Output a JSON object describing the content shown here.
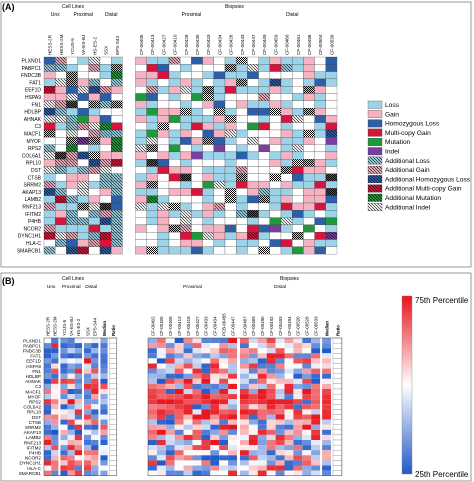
{
  "panel_a": {
    "label": "(A)",
    "group_cell_lines": "Cell Lines",
    "group_biopsies": "Biopsies",
    "subgroups_cells": [
      "Unx",
      "Proximal",
      "Distal"
    ],
    "subgroups_biopsies": [
      "Proximal",
      "Distal"
    ],
    "columns": [
      "HESS-2R",
      "HESS-2M",
      "YCUS-5",
      "VA-ES-BJ",
      "HS-ES-2",
      "SSX",
      "EPS-S44",
      "CF-00405",
      "CF-00413",
      "CF-00427",
      "CF-00410",
      "CF-00428",
      "CF-00430",
      "CF-00433",
      "CF-00434",
      "CF-00426",
      "CF-00443",
      "CF-00447",
      "CF-00449",
      "CF-00459",
      "CF-00460",
      "CF-00461",
      "CF-00488",
      "CF-00504",
      "CF-00539"
    ],
    "genes": [
      "PLXND1",
      "PABPC1",
      "FNDC3B",
      "FAT1",
      "EEF1D",
      "HSPA9",
      "FN1",
      "HDLBP",
      "AHNAK",
      "C3",
      "MACF1",
      "MYOF",
      "RPS2",
      "COL6A1",
      "RPL10",
      "DST",
      "CTSB",
      "SRRM2",
      "AKAP13",
      "LAMB2",
      "RNF213",
      "IFITM2",
      "P4HB",
      "NCOR2",
      "DYNC1H1",
      "HLA-C",
      "SMARCB1"
    ],
    "legend": [
      {
        "label": "Loss",
        "color": "#9cd3e8",
        "pattern": "solid"
      },
      {
        "label": "Gain",
        "color": "#f4b2c2",
        "pattern": "solid"
      },
      {
        "label": "Homozygous Loss",
        "color": "#2d5fa8",
        "pattern": "solid"
      },
      {
        "label": "Multi-copy Gain",
        "color": "#d8143c",
        "pattern": "solid"
      },
      {
        "label": "Mutation",
        "color": "#1e9a3c",
        "pattern": "solid"
      },
      {
        "label": "Indel",
        "color": "#7a3da0",
        "pattern": "solid"
      },
      {
        "label": "Additional Loss",
        "color": "#9cd3e8",
        "pattern": "hatch"
      },
      {
        "label": "Additional Gain",
        "color": "#f4b2c2",
        "pattern": "hatch"
      },
      {
        "label": "Additional Homozygous Loss",
        "color": "#2d5fa8",
        "pattern": "hatch"
      },
      {
        "label": "Additional Multi-copy Gain",
        "color": "#d8143c",
        "pattern": "hatch"
      },
      {
        "label": "Additional Mutation",
        "color": "#1e9a3c",
        "pattern": "hatch"
      },
      {
        "label": "Additional Indel",
        "color": "#ffffff",
        "pattern": "hatch"
      }
    ]
  },
  "panel_b": {
    "label": "(B)",
    "group_cell_lines": "Cell Lines",
    "group_biopsies": "Biopsies",
    "subgroups_cells": [
      "Unx",
      "Proximal",
      "Distal"
    ],
    "subgroups_biopsies": [
      "Proximal",
      "Distal"
    ],
    "columns": [
      "HESS-2R",
      "HESS-2M",
      "YCUS-5",
      "VA-ES-BJ",
      "HS-ES-2",
      "SSX",
      "EPS-S44",
      "CF-00402",
      "CF-00405",
      "CF-00408",
      "CF-00413",
      "CF-00418",
      "CF-00427",
      "CF-00433",
      "CF-00434",
      "PCB-00455",
      "CF-00447",
      "CF-00487",
      "CF-00489",
      "CF-00490",
      "CF-00492",
      "CF-00493",
      "CF-00494",
      "CF-00520",
      "CF-00528",
      "CF-00539"
    ],
    "median_label": "Median",
    "ratio_label": "Ratio",
    "genes": [
      "PLXND1",
      "PABPC1",
      "FNDC3B",
      "FAT1",
      "EEF1D",
      "HSPA9",
      "FN1",
      "HDLBP",
      "AHNAK",
      "C3",
      "MACF1",
      "MYOF",
      "RPS2",
      "COL6A2",
      "RPL10",
      "DST",
      "CTSB",
      "SRRM2",
      "AKAP13",
      "LAMB2",
      "RNF213",
      "IFITM2",
      "P4HB",
      "NCOR2",
      "DYNC1H1",
      "HLA-C",
      "SMARCB1"
    ],
    "colorbar_top": "75th Percentile",
    "colorbar_bottom": "25th Percentile",
    "colors": {
      "high": "#e8141c",
      "mid": "#ffffff",
      "low": "#1f58c8"
    }
  }
}
